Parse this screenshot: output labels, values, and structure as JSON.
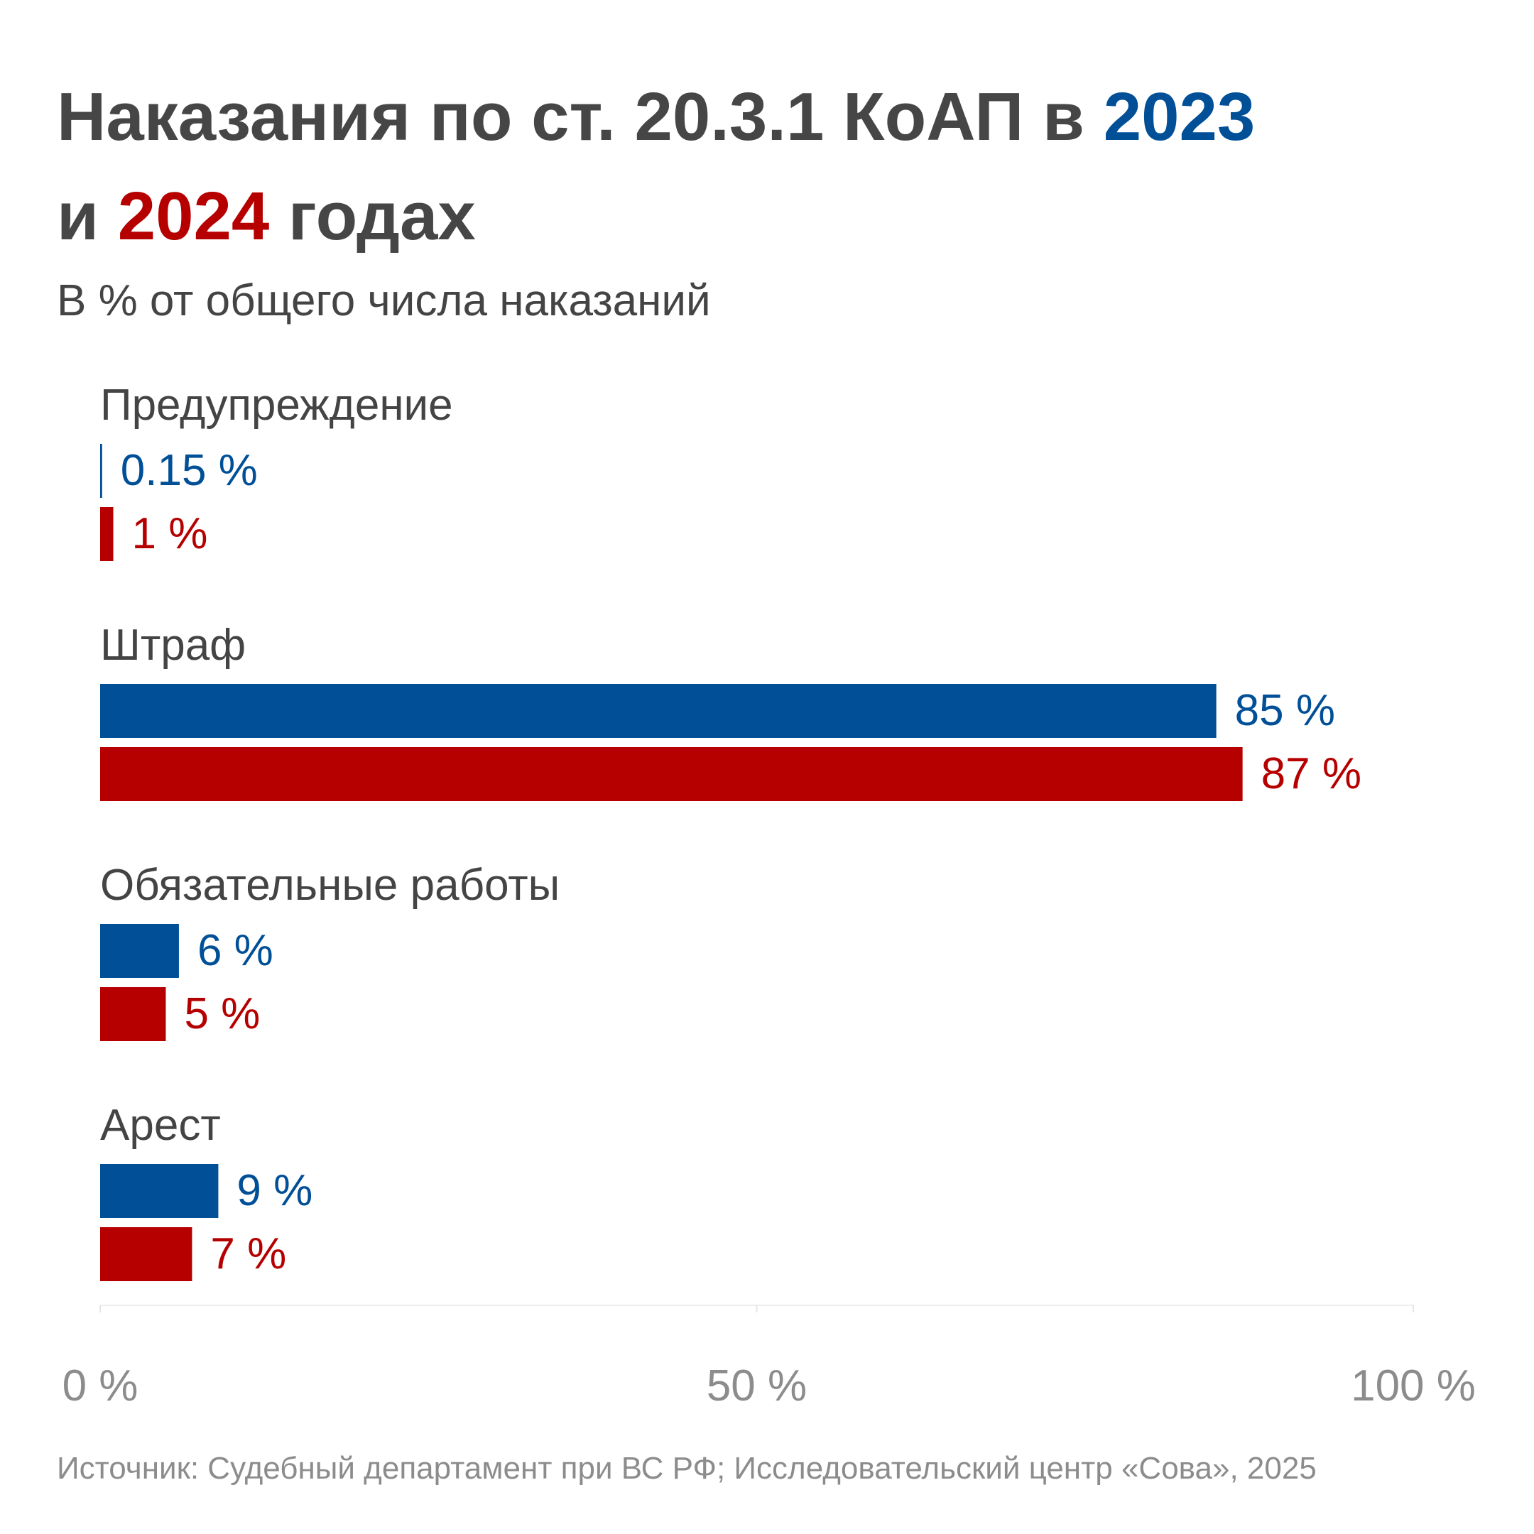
{
  "title": {
    "part1": "Наказания по ст. 20.3.1 КоАП в ",
    "year1": "2023",
    "part2": "и ",
    "year2": "2024",
    "part3": " годах"
  },
  "subtitle": "В % от общего числа наказаний",
  "source": "Источник: Судебный департамент при ВС РФ; Исследовательский центр «Сова», 2025",
  "colors": {
    "2023": "#004f97",
    "2024": "#b60000",
    "title": "#464646",
    "axis": "#8c8c8c"
  },
  "chart_data": {
    "type": "bar",
    "orientation": "horizontal",
    "categories": [
      "Предупреждение",
      "Штраф",
      "Обязательные работы",
      "Арест"
    ],
    "series": [
      {
        "name": "2023",
        "values": [
          0.15,
          85,
          6,
          9
        ],
        "labels": [
          "0.15 %",
          "85 %",
          "6 %",
          "9 %"
        ]
      },
      {
        "name": "2024",
        "values": [
          1,
          87,
          5,
          7
        ],
        "labels": [
          "1 %",
          "87 %",
          "5 %",
          "7 %"
        ]
      }
    ],
    "xlim": [
      0,
      100
    ],
    "xticks": [
      0,
      50,
      100
    ],
    "xtick_labels": [
      "0 %",
      "50 %",
      "100 %"
    ],
    "grid": false,
    "legend": "in title"
  }
}
